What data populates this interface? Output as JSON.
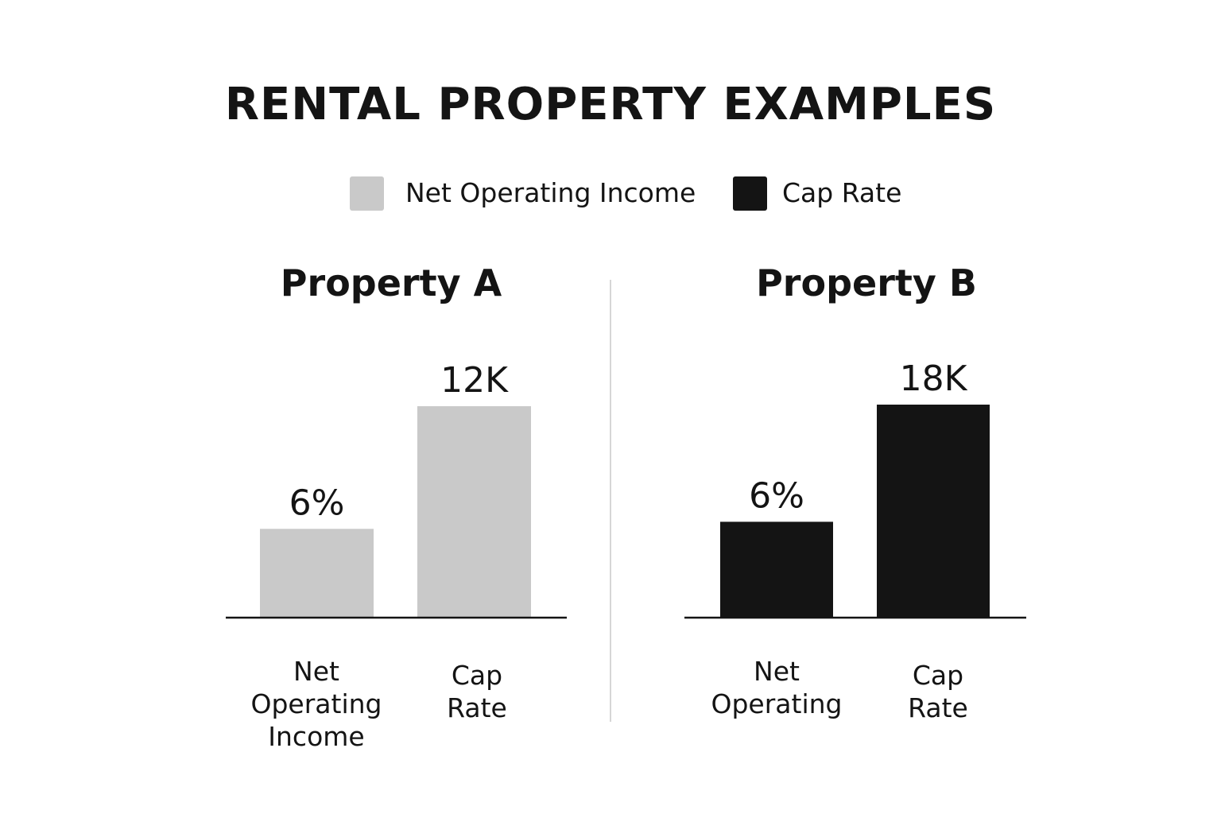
{
  "chart_data": {
    "type": "bar",
    "title": "RENTAL PROPERTY EXAMPLES",
    "legend": [
      {
        "label": "Net Operating Income",
        "color": "#c9c9c9"
      },
      {
        "label": "Cap Rate",
        "color": "#141414"
      }
    ],
    "legend_position": "top",
    "grid": false,
    "panels": [
      {
        "name": "Property A",
        "color": "#c9c9c9",
        "relative_heights": [
          0.42,
          1.0
        ],
        "bars": [
          {
            "category": [
              "Net",
              "Operating",
              "Income"
            ],
            "label": "6%"
          },
          {
            "category": [
              "Cap",
              "Rate"
            ],
            "label": "12K"
          }
        ]
      },
      {
        "name": "Property B",
        "color": "#141414",
        "relative_heights": [
          0.45,
          1.0
        ],
        "bars": [
          {
            "category": [
              "Net",
              "Operating"
            ],
            "label": "6%"
          },
          {
            "category": [
              "Cap",
              "Rate"
            ],
            "label": "18K"
          }
        ]
      }
    ]
  },
  "colors": {
    "divider": "#d6d6d6",
    "baseline": "#141414",
    "text": "#141414"
  }
}
